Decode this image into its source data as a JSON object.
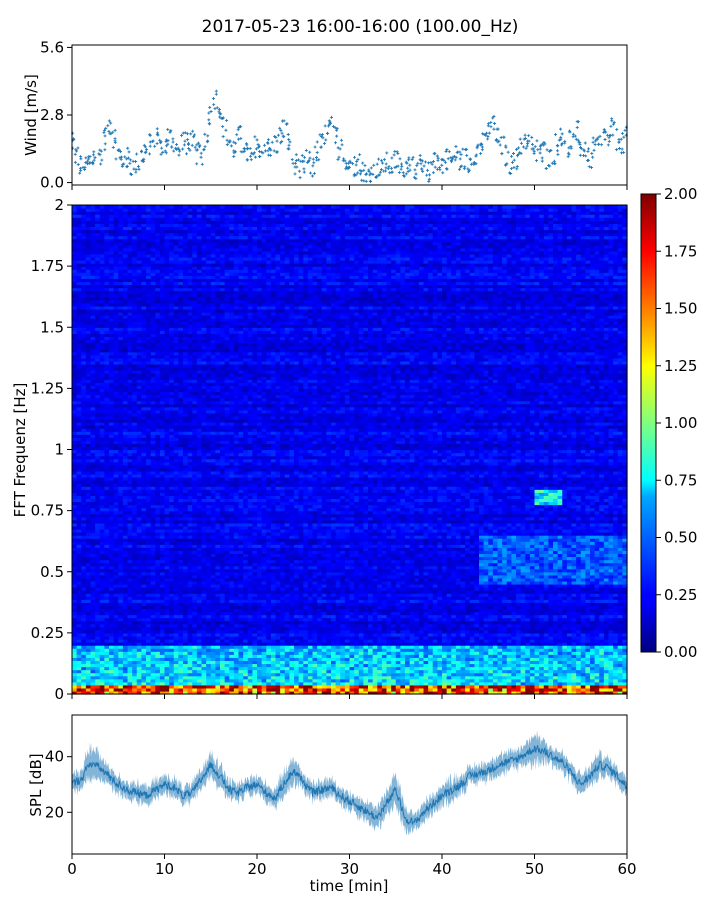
{
  "title": "2017-05-23 16:00-16:00 (100.00_Hz)",
  "colors": {
    "wind": "#1f77b4",
    "spl": "#1f77b4",
    "axes": "#000000",
    "background": "#ffffff"
  },
  "chart_data": [
    {
      "id": "wind",
      "type": "scatter",
      "ylabel": "Wind [m/s]",
      "xlabel": "",
      "xlim": [
        0,
        60
      ],
      "ylim": [
        -0.1,
        5.7
      ],
      "yticks": [
        "0.0",
        "2.8",
        "5.6"
      ],
      "xticks_labeled": false,
      "marker": "+",
      "color": "#1f77b4",
      "x": [
        0,
        0.5,
        1,
        1.5,
        2,
        2.5,
        3,
        3.5,
        4,
        4.5,
        5,
        5.5,
        6,
        6.5,
        7,
        7.5,
        8,
        8.5,
        9,
        9.5,
        10,
        10.5,
        11,
        11.5,
        12,
        12.5,
        13,
        13.5,
        14,
        14.5,
        15,
        15.5,
        16,
        16.5,
        17,
        17.5,
        18,
        18.5,
        19,
        19.5,
        20,
        20.5,
        21,
        21.5,
        22,
        22.5,
        23,
        23.5,
        24,
        24.5,
        25,
        25.5,
        26,
        26.5,
        27,
        27.5,
        28,
        28.5,
        29,
        29.5,
        30,
        30.5,
        31,
        31.5,
        32,
        32.5,
        33,
        33.5,
        34,
        34.5,
        35,
        35.5,
        36,
        36.5,
        37,
        37.5,
        38,
        38.5,
        39,
        39.5,
        40,
        40.5,
        41,
        41.5,
        42,
        42.5,
        43,
        43.5,
        44,
        44.5,
        45,
        45.5,
        46,
        46.5,
        47,
        47.5,
        48,
        48.5,
        49,
        49.5,
        50,
        50.5,
        51,
        51.5,
        52,
        52.5,
        53,
        53.5,
        54,
        54.5,
        55,
        55.5,
        56,
        56.5,
        57,
        57.5,
        58,
        58.5,
        59,
        59.5,
        60
      ],
      "y": [
        1.6,
        1.1,
        0.7,
        0.6,
        0.9,
        1.0,
        1.2,
        1.8,
        2.4,
        1.9,
        1.2,
        0.9,
        1.0,
        0.7,
        0.8,
        1.1,
        1.3,
        1.6,
        1.8,
        1.6,
        1.5,
        1.9,
        1.7,
        1.3,
        1.8,
        1.6,
        1.7,
        1.2,
        1.1,
        1.8,
        2.8,
        3.5,
        3.1,
        2.3,
        1.7,
        1.4,
        1.9,
        1.6,
        1.2,
        1.0,
        1.5,
        1.2,
        1.7,
        1.3,
        1.6,
        1.9,
        2.2,
        1.6,
        0.8,
        0.5,
        0.7,
        0.9,
        0.6,
        1.3,
        1.6,
        2.0,
        2.3,
        1.9,
        1.4,
        1.0,
        0.8,
        0.7,
        0.8,
        0.5,
        0.3,
        0.4,
        0.6,
        0.5,
        0.8,
        0.7,
        0.9,
        0.6,
        0.7,
        0.8,
        0.6,
        0.7,
        0.5,
        0.4,
        0.8,
        0.9,
        0.8,
        1.0,
        0.9,
        1.2,
        0.9,
        1.0,
        0.8,
        1.2,
        1.4,
        1.6,
        2.1,
        2.4,
        1.8,
        1.5,
        1.1,
        0.8,
        1.0,
        1.4,
        1.8,
        1.6,
        1.2,
        1.4,
        1.3,
        1.0,
        1.2,
        1.6,
        1.9,
        1.4,
        1.7,
        2.1,
        1.5,
        1.2,
        1.0,
        1.4,
        1.6,
        1.9,
        1.7,
        2.2,
        1.8,
        1.6,
        2.0
      ]
    },
    {
      "id": "spectrogram",
      "type": "heatmap",
      "ylabel": "FFT Frequenz [Hz]",
      "xlabel": "",
      "xlim": [
        0,
        60
      ],
      "ylim": [
        0,
        2
      ],
      "yticks": [
        "0",
        "0.25",
        "0.5",
        "0.75",
        "1",
        "1.25",
        "1.5",
        "1.75",
        "2"
      ],
      "xticks_labeled": false,
      "colormap": "jet",
      "clim": [
        0,
        2
      ],
      "colorbar_ticks": [
        "0.00",
        "0.25",
        "0.50",
        "0.75",
        "1.00",
        "1.25",
        "1.50",
        "1.75",
        "2.00"
      ],
      "time_bins": 120,
      "freq_bins": 160,
      "base_level": 0.22,
      "features": [
        {
          "desc": "strong low-frequency energy",
          "f_range": [
            0,
            0.04
          ],
          "value": 1.8
        },
        {
          "desc": "elevated energy",
          "f_range": [
            0.04,
            0.2
          ],
          "value": 0.7
        },
        {
          "desc": "patch",
          "t_range": [
            50,
            53
          ],
          "f_range": [
            0.78,
            0.84
          ],
          "value": 0.85
        },
        {
          "desc": "band",
          "t_range": [
            44,
            60
          ],
          "f_range": [
            0.45,
            0.65
          ],
          "value": 0.5
        }
      ]
    },
    {
      "id": "spl",
      "type": "line",
      "ylabel": "SPL [dB]",
      "xlabel": "time [min]",
      "xlim": [
        0,
        60
      ],
      "ylim": [
        5,
        55
      ],
      "yticks": [
        "20",
        "40"
      ],
      "xticks": [
        "0",
        "10",
        "20",
        "30",
        "40",
        "50",
        "60"
      ],
      "color": "#1f77b4",
      "x": [
        0,
        1,
        2,
        3,
        4,
        5,
        6,
        7,
        8,
        9,
        10,
        11,
        12,
        13,
        14,
        15,
        16,
        17,
        18,
        19,
        20,
        21,
        22,
        23,
        24,
        25,
        26,
        27,
        28,
        29,
        30,
        31,
        32,
        33,
        34,
        35,
        36,
        37,
        38,
        39,
        40,
        41,
        42,
        43,
        44,
        45,
        46,
        47,
        48,
        49,
        50,
        51,
        52,
        53,
        54,
        55,
        56,
        57,
        58,
        59,
        60
      ],
      "y": [
        30,
        32,
        38,
        36,
        33,
        30,
        28,
        27,
        26,
        28,
        30,
        29,
        26,
        27,
        32,
        37,
        33,
        28,
        27,
        29,
        30,
        27,
        25,
        31,
        35,
        31,
        27,
        28,
        29,
        26,
        24,
        22,
        20,
        18,
        23,
        28,
        18,
        16,
        20,
        23,
        26,
        28,
        30,
        33,
        34,
        35,
        37,
        38,
        39,
        41,
        43,
        42,
        40,
        38,
        34,
        30,
        33,
        37,
        36,
        33,
        29
      ],
      "band_halfwidth": [
        3,
        3,
        6,
        4,
        3,
        3,
        3,
        3,
        3,
        3,
        3,
        3,
        3,
        3,
        3,
        5,
        4,
        3,
        3,
        3,
        3,
        3,
        3,
        4,
        4,
        3,
        3,
        3,
        3,
        3,
        3,
        3,
        3,
        4,
        4,
        6,
        4,
        3,
        3,
        3,
        3,
        4,
        3,
        3,
        3,
        3,
        3,
        3,
        3,
        3,
        5,
        4,
        3,
        3,
        3,
        3,
        3,
        4,
        3,
        3,
        3
      ]
    }
  ]
}
